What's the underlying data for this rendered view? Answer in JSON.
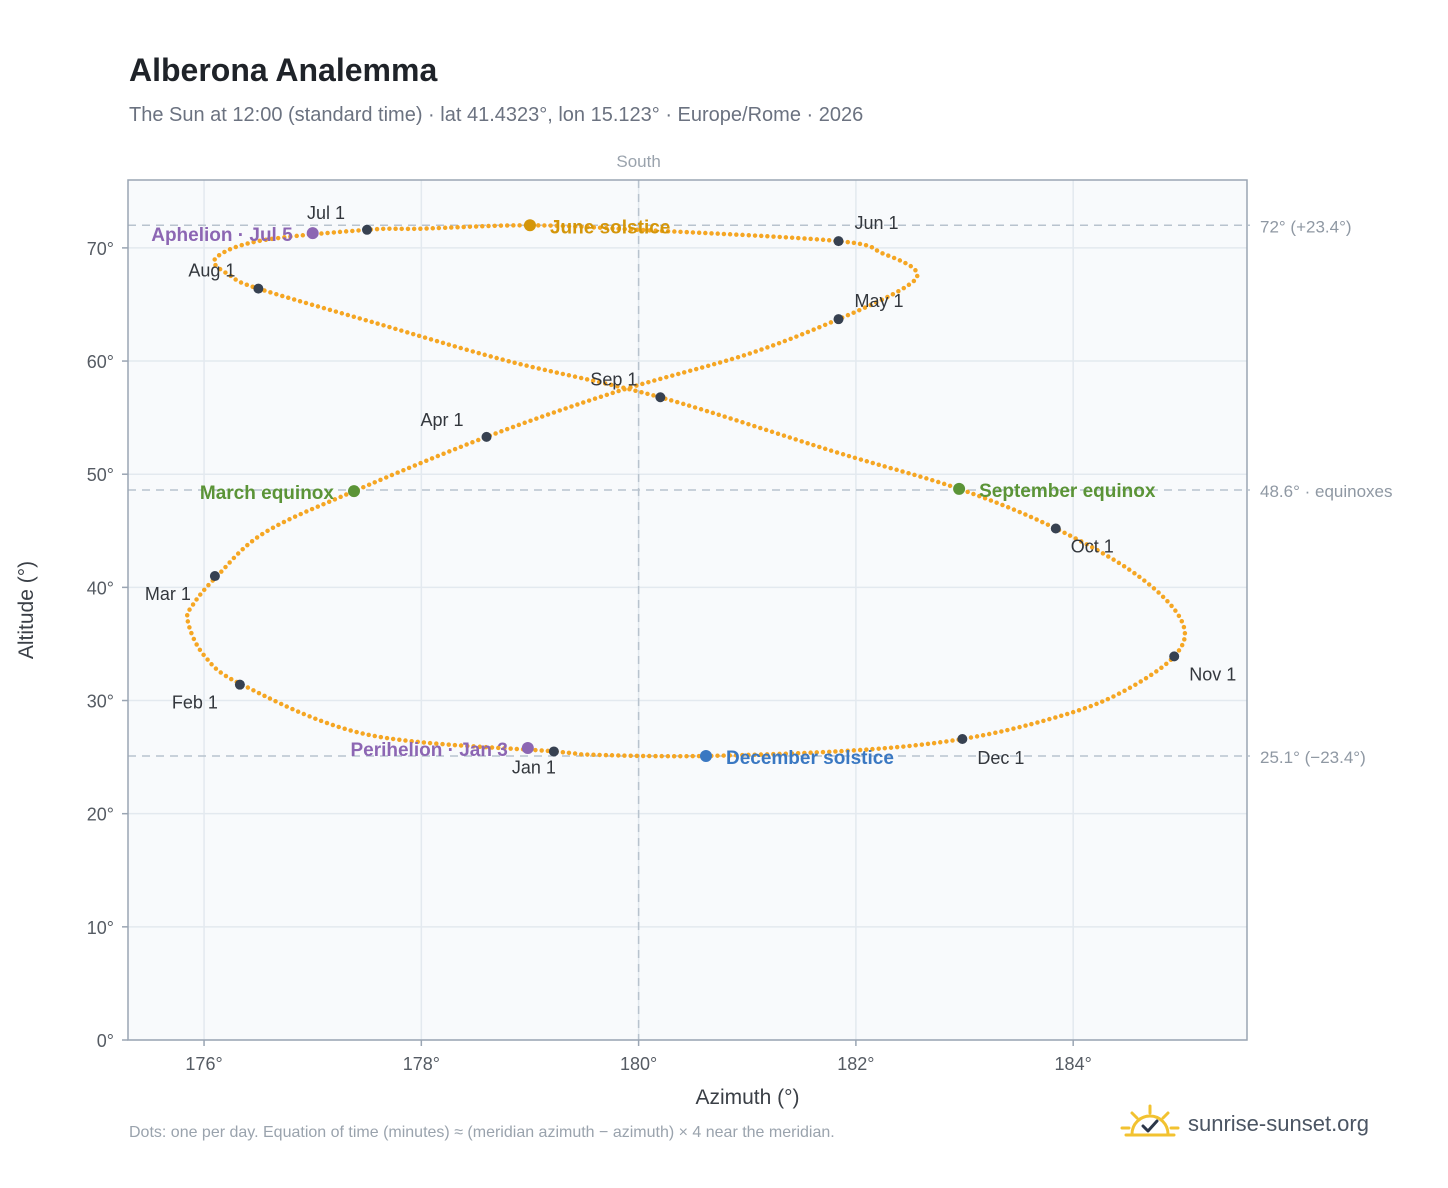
{
  "title": "Alberona Analemma",
  "subtitle": "The Sun at 12:00 (standard time) · lat 41.4323°, lon 15.123° · Europe/Rome · 2026",
  "footnote": "Dots: one per day. Equation of time (minutes) ≈ (meridian azimuth − azimuth) × 4 near the meridian.",
  "brand": {
    "name": "sunrise-sunset.org",
    "icon": "sun-check-icon"
  },
  "colors": {
    "curve": "#f5a623",
    "month_marker": "#374151",
    "solstice_june": "#d4960a",
    "solstice_december": "#3a78c2",
    "equinox": "#5b9437",
    "apsis": "#8c66b3",
    "plot_bg": "#f8fafc",
    "grid": "#e3e9ef",
    "reference_line": "#b8c3ce"
  },
  "chart_data": {
    "type": "scatter",
    "xlabel": "Azimuth (°)",
    "ylabel": "Altitude (°)",
    "xlim": [
      175.3,
      185.6
    ],
    "ylim": [
      0,
      76
    ],
    "xticks": [
      176,
      178,
      180,
      182,
      184
    ],
    "yticks": [
      0,
      10,
      20,
      30,
      40,
      50,
      60,
      70
    ],
    "x_tick_labels": [
      "176°",
      "178°",
      "180°",
      "182°",
      "184°"
    ],
    "y_tick_labels": [
      "0°",
      "10°",
      "20°",
      "30°",
      "40°",
      "50°",
      "60°",
      "70°"
    ],
    "grid": true,
    "meridian": {
      "azimuth": 180,
      "label": "South"
    },
    "reference_lines": [
      {
        "altitude": 72.0,
        "label": "72° (+23.4°)"
      },
      {
        "altitude": 48.6,
        "label": "48.6° · equinoxes"
      },
      {
        "altitude": 25.1,
        "label": "25.1° (−23.4°)"
      }
    ],
    "daily_path": {
      "x": [
        179.22,
        177.5,
        176.35,
        176.0,
        175.85,
        175.9,
        176.12,
        176.55,
        177.38,
        178.6,
        179.8,
        181.0,
        181.84,
        182.45,
        182.55,
        182.25,
        181.84,
        180.0,
        179.0,
        178.0,
        177.5,
        176.5,
        176.1,
        176.25,
        176.5,
        177.6,
        178.8,
        180.2,
        181.8,
        182.95,
        183.84,
        184.6,
        185.0,
        184.93,
        184.4,
        183.8,
        182.98,
        182.0,
        180.6,
        179.6,
        179.22
      ],
      "y": [
        25.5,
        27.0,
        31.4,
        34.0,
        37.0,
        38.5,
        41.0,
        44.8,
        48.5,
        53.3,
        57.3,
        60.6,
        63.7,
        66.5,
        68.0,
        69.5,
        70.6,
        71.6,
        72.0,
        71.7,
        71.6,
        70.6,
        69.0,
        67.5,
        66.4,
        63.3,
        60.0,
        56.8,
        52.0,
        48.7,
        45.2,
        41.0,
        37.0,
        33.9,
        30.5,
        28.4,
        26.6,
        25.6,
        25.1,
        25.2,
        25.5
      ]
    },
    "month_markers": [
      {
        "label": "Jan 1",
        "x": 179.22,
        "y": 25.5
      },
      {
        "label": "Feb 1",
        "x": 176.33,
        "y": 31.4
      },
      {
        "label": "Mar 1",
        "x": 176.1,
        "y": 41.0
      },
      {
        "label": "Apr 1",
        "x": 178.6,
        "y": 53.3
      },
      {
        "label": "May 1",
        "x": 181.84,
        "y": 63.7
      },
      {
        "label": "Jun 1",
        "x": 181.84,
        "y": 70.6
      },
      {
        "label": "Jul 1",
        "x": 177.5,
        "y": 71.6
      },
      {
        "label": "Aug 1",
        "x": 176.5,
        "y": 66.4
      },
      {
        "label": "Sep 1",
        "x": 180.2,
        "y": 56.8
      },
      {
        "label": "Oct 1",
        "x": 183.84,
        "y": 45.2
      },
      {
        "label": "Nov 1",
        "x": 184.93,
        "y": 33.9
      },
      {
        "label": "Dec 1",
        "x": 182.98,
        "y": 26.6
      }
    ],
    "events": [
      {
        "label": "June solstice",
        "x": 179.0,
        "y": 72.0,
        "color": "#d4960a"
      },
      {
        "label": "December solstice",
        "x": 180.62,
        "y": 25.1,
        "color": "#3a78c2"
      },
      {
        "label": "March equinox",
        "x": 177.38,
        "y": 48.5,
        "color": "#5b9437"
      },
      {
        "label": "September equinox",
        "x": 182.95,
        "y": 48.7,
        "color": "#5b9437"
      },
      {
        "label": "Aphelion · Jul 5",
        "x": 177.0,
        "y": 71.3,
        "color": "#8c66b3"
      },
      {
        "label": "Perihelion · Jan 3",
        "x": 178.98,
        "y": 25.8,
        "color": "#8c66b3"
      }
    ]
  }
}
